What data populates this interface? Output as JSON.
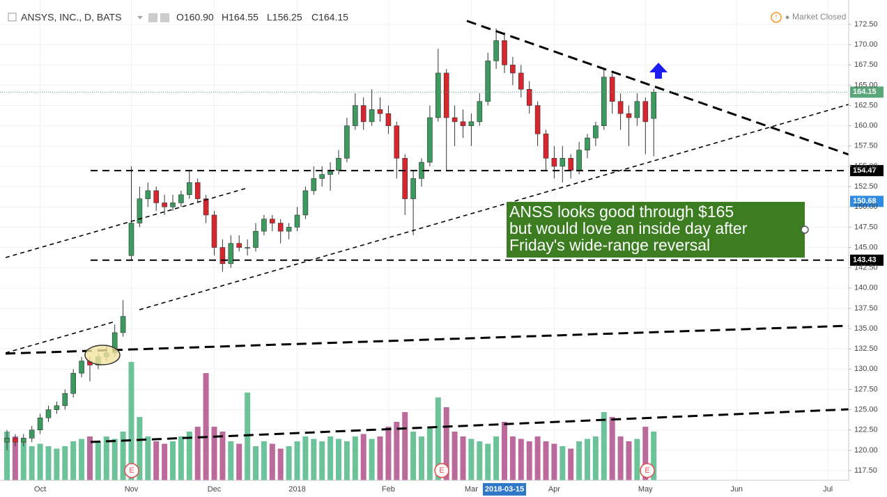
{
  "header": {
    "symbol": "ANSYS, INC., D, BATS",
    "open": "O160.90",
    "high": "H164.55",
    "low": "L156.25",
    "close": "C164.15",
    "status": "Market Closed"
  },
  "annotation": {
    "lines": [
      "ANSS looks good through $165",
      "but would love an inside day after",
      "Friday's wide-range reversal"
    ],
    "color": "#3c7d22"
  },
  "earnings_label": "E",
  "chart_data": {
    "type": "candlestick",
    "categories": [
      null,
      null,
      null,
      null,
      "Oct",
      null,
      null,
      null,
      null,
      null,
      null,
      null,
      null,
      null,
      null,
      "Nov",
      null,
      null,
      null,
      null,
      null,
      null,
      null,
      null,
      null,
      "Dec",
      null,
      null,
      null,
      null,
      null,
      null,
      null,
      null,
      null,
      "2018",
      null,
      null,
      null,
      null,
      null,
      null,
      null,
      null,
      null,
      null,
      "Feb",
      null,
      null,
      null,
      null,
      null,
      null,
      null,
      null,
      null,
      "Mar",
      null,
      null,
      null,
      "2018-03-15",
      null,
      null,
      null,
      null,
      null,
      "Apr",
      null,
      null,
      null,
      null,
      null,
      null,
      null,
      null,
      null,
      null,
      "May",
      null,
      null,
      null,
      null,
      null,
      null,
      null,
      null,
      null,
      null,
      "Jun",
      null,
      null,
      null,
      null,
      null,
      null,
      null,
      null,
      null,
      null,
      "Jul",
      null,
      null
    ],
    "crosshair_index": 60,
    "open": [
      121,
      121.5,
      121,
      121.5,
      122.5,
      124,
      125,
      125.5,
      127,
      129.5,
      131,
      130.5,
      131.5,
      132,
      134.5,
      144,
      148,
      151,
      152,
      150.5,
      150,
      150.5,
      151.5,
      153,
      151,
      149,
      145,
      143,
      145.5,
      145,
      145,
      147,
      148.5,
      148,
      147,
      147.5,
      149,
      152,
      153.5,
      154,
      154.5,
      156,
      160,
      162.5,
      160.5,
      162,
      161.5,
      160,
      156,
      151,
      153.5,
      155.5,
      161,
      166.5,
      161,
      160.5,
      160,
      160.5,
      163,
      168,
      170.5,
      167.5,
      166.5,
      164.5,
      162.5,
      159,
      156,
      155,
      156,
      154.5,
      157,
      158.5,
      160,
      166,
      163,
      161.5,
      161,
      163,
      160.9,
      null,
      null,
      null,
      null,
      null,
      null,
      null,
      null,
      null,
      null,
      null,
      null,
      null,
      null,
      null,
      null,
      null,
      null,
      null,
      null,
      null,
      null,
      null
    ],
    "high": [
      122.5,
      122,
      122,
      123,
      124.5,
      125.5,
      126,
      127.5,
      130,
      131.5,
      131.5,
      132,
      133,
      135.5,
      138.5,
      155,
      152.5,
      153,
      152.5,
      151.5,
      151.5,
      152,
      154.5,
      153.5,
      151.5,
      149.5,
      146,
      146.5,
      146.5,
      146,
      148,
      149,
      149,
      148.5,
      148,
      150,
      152.5,
      155,
      155,
      155.5,
      157,
      161,
      164,
      163.5,
      164.5,
      163.5,
      162.5,
      160.5,
      156.5,
      154.5,
      156,
      162.5,
      169.5,
      167,
      162.5,
      162,
      161.5,
      164,
      169,
      172,
      171.5,
      168.5,
      167.5,
      165.5,
      163,
      159.5,
      157.5,
      157.5,
      156.5,
      158,
      159,
      160.5,
      167,
      166.5,
      164,
      162.5,
      164,
      163.5,
      164.55,
      null,
      null,
      null,
      null,
      null,
      null,
      null,
      null,
      null,
      null,
      null,
      null,
      null,
      null,
      null,
      null,
      null,
      null,
      null,
      null,
      null,
      null,
      null
    ],
    "low": [
      120,
      120.5,
      120.5,
      121,
      122,
      123.5,
      124.5,
      125,
      126.5,
      129,
      128.5,
      130,
      131,
      131.5,
      134,
      143.5,
      147.5,
      150,
      149.5,
      149,
      149.5,
      150,
      151,
      150.5,
      148,
      144,
      142,
      142.5,
      144.5,
      144,
      144.5,
      146.5,
      147,
      145.5,
      146,
      147,
      148.5,
      151.5,
      152.5,
      152,
      154,
      155.5,
      159.5,
      159.5,
      160,
      160.5,
      159,
      153.5,
      149,
      146.5,
      152.5,
      155,
      160.5,
      154.5,
      157.5,
      158.5,
      157.5,
      160,
      162.5,
      167,
      166.5,
      165,
      163.5,
      161.5,
      157.5,
      154.5,
      153.5,
      153,
      153.5,
      154,
      156,
      157.5,
      159.5,
      161.5,
      159.5,
      157.5,
      160,
      156.5,
      156.25,
      null,
      null,
      null,
      null,
      null,
      null,
      null,
      null,
      null,
      null,
      null,
      null,
      null,
      null,
      null,
      null,
      null,
      null,
      null,
      null,
      null,
      null,
      null
    ],
    "close": [
      121.5,
      121,
      121.5,
      122.5,
      124,
      125,
      125.5,
      127,
      129.5,
      131,
      130.5,
      131.5,
      132,
      134.5,
      136.5,
      148,
      151,
      152,
      150.5,
      150,
      150.5,
      151.5,
      153,
      151,
      149,
      145,
      143,
      145.5,
      145,
      145,
      147,
      148.5,
      148,
      147,
      147.5,
      149,
      152,
      153.5,
      154,
      154.5,
      156,
      160,
      162.5,
      160.5,
      162,
      161.5,
      160,
      156,
      151,
      153.5,
      155.5,
      161,
      166.5,
      161,
      160.5,
      160,
      160.5,
      163,
      168,
      170.5,
      167.5,
      166.5,
      164.5,
      162.5,
      159,
      156,
      155,
      156,
      154.5,
      157,
      158.5,
      160,
      166,
      163,
      161.5,
      161,
      163,
      160.5,
      164.15,
      null,
      null,
      null,
      null,
      null,
      null,
      null,
      null,
      null,
      null,
      null,
      null,
      null,
      null,
      null,
      null,
      null,
      null,
      null,
      null,
      null,
      null,
      null
    ],
    "volume": [
      1000,
      900,
      800,
      700,
      750,
      700,
      650,
      700,
      800,
      850,
      900,
      800,
      900,
      850,
      1000,
      2430,
      1300,
      900,
      800,
      750,
      800,
      900,
      1000,
      1100,
      2200,
      1100,
      1000,
      800,
      750,
      1800,
      700,
      800,
      750,
      650,
      700,
      800,
      900,
      850,
      800,
      900,
      850,
      800,
      900,
      950,
      850,
      900,
      1100,
      1200,
      1400,
      1000,
      900,
      1100,
      1700,
      1500,
      1000,
      900,
      850,
      800,
      750,
      900,
      1200,
      900,
      850,
      800,
      900,
      800,
      750,
      700,
      650,
      800,
      850,
      900,
      1400,
      1300,
      900,
      800,
      850,
      1100,
      1000,
      null,
      null,
      null,
      null,
      null,
      null,
      null,
      null,
      null,
      null,
      null,
      null,
      null,
      null,
      null,
      null,
      null,
      null,
      null,
      null,
      null,
      null,
      null
    ],
    "volume_ylim": [
      0,
      3000
    ],
    "up_color": "#3c9a5f",
    "down_color": "#d7262e",
    "volume_up_color": "#53b987",
    "volume_down_color": "#b0508a",
    "ylim": [
      117.5,
      172.5
    ],
    "yticks": [
      {
        "value": 117.5,
        "label": "117.50"
      },
      {
        "value": 120,
        "label": "120.00"
      },
      {
        "value": 122.5,
        "label": "122.50"
      },
      {
        "value": 125,
        "label": "125.00"
      },
      {
        "value": 127.5,
        "label": "127.50"
      },
      {
        "value": 130,
        "label": "130.00"
      },
      {
        "value": 132.5,
        "label": "132.50"
      },
      {
        "value": 135,
        "label": "135.00"
      },
      {
        "value": 137.5,
        "label": "137.50"
      },
      {
        "value": 140,
        "label": "140.00"
      },
      {
        "value": 142.5,
        "label": "142.50"
      },
      {
        "value": 145,
        "label": "145.00"
      },
      {
        "value": 147.5,
        "label": "147.50"
      },
      {
        "value": 150,
        "label": "150.00"
      },
      {
        "value": 152.5,
        "label": "152.50"
      },
      {
        "value": 155,
        "label": "155.00"
      },
      {
        "value": 157.5,
        "label": "157.50"
      },
      {
        "value": 160,
        "label": "160.00"
      },
      {
        "value": 162.5,
        "label": "162.50"
      },
      {
        "value": 165,
        "label": "165.00"
      },
      {
        "value": 167.5,
        "label": "167.50"
      },
      {
        "value": 170,
        "label": "170.00"
      },
      {
        "value": 172.5,
        "label": "172.50"
      }
    ],
    "price_tags": [
      {
        "value": 164.15,
        "label": "164.15",
        "color": "#5ba57a",
        "line": "dotted"
      },
      {
        "value": 154.47,
        "label": "154.47",
        "color": "#000000",
        "line": "dashed"
      },
      {
        "value": 150.68,
        "label": "150.68",
        "color": "#2e8be0"
      },
      {
        "value": 143.43,
        "label": "143.43",
        "color": "#000000",
        "line": "dashed"
      }
    ],
    "grid": true
  }
}
